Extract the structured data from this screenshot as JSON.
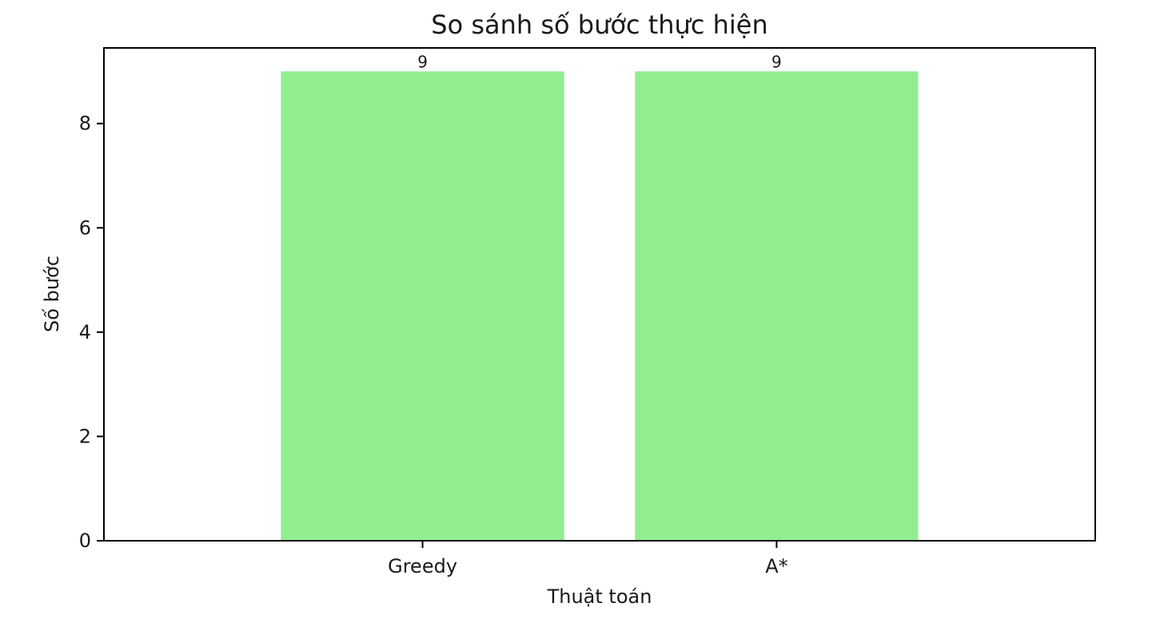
{
  "chart_data": {
    "type": "bar",
    "title": "So sánh số bước thực hiện",
    "xlabel": "Thuật toán",
    "ylabel": "Số bước",
    "categories": [
      "Greedy",
      "A*"
    ],
    "values": [
      9,
      9
    ],
    "data_labels": [
      "9",
      "9"
    ],
    "ylim": [
      0,
      9.45
    ],
    "yticks": [
      0,
      2,
      4,
      6,
      8
    ],
    "ytick_labels": [
      "0",
      "2",
      "4",
      "6",
      "8"
    ],
    "bar_color": "#90ee90",
    "grid": false,
    "legend": "none"
  }
}
